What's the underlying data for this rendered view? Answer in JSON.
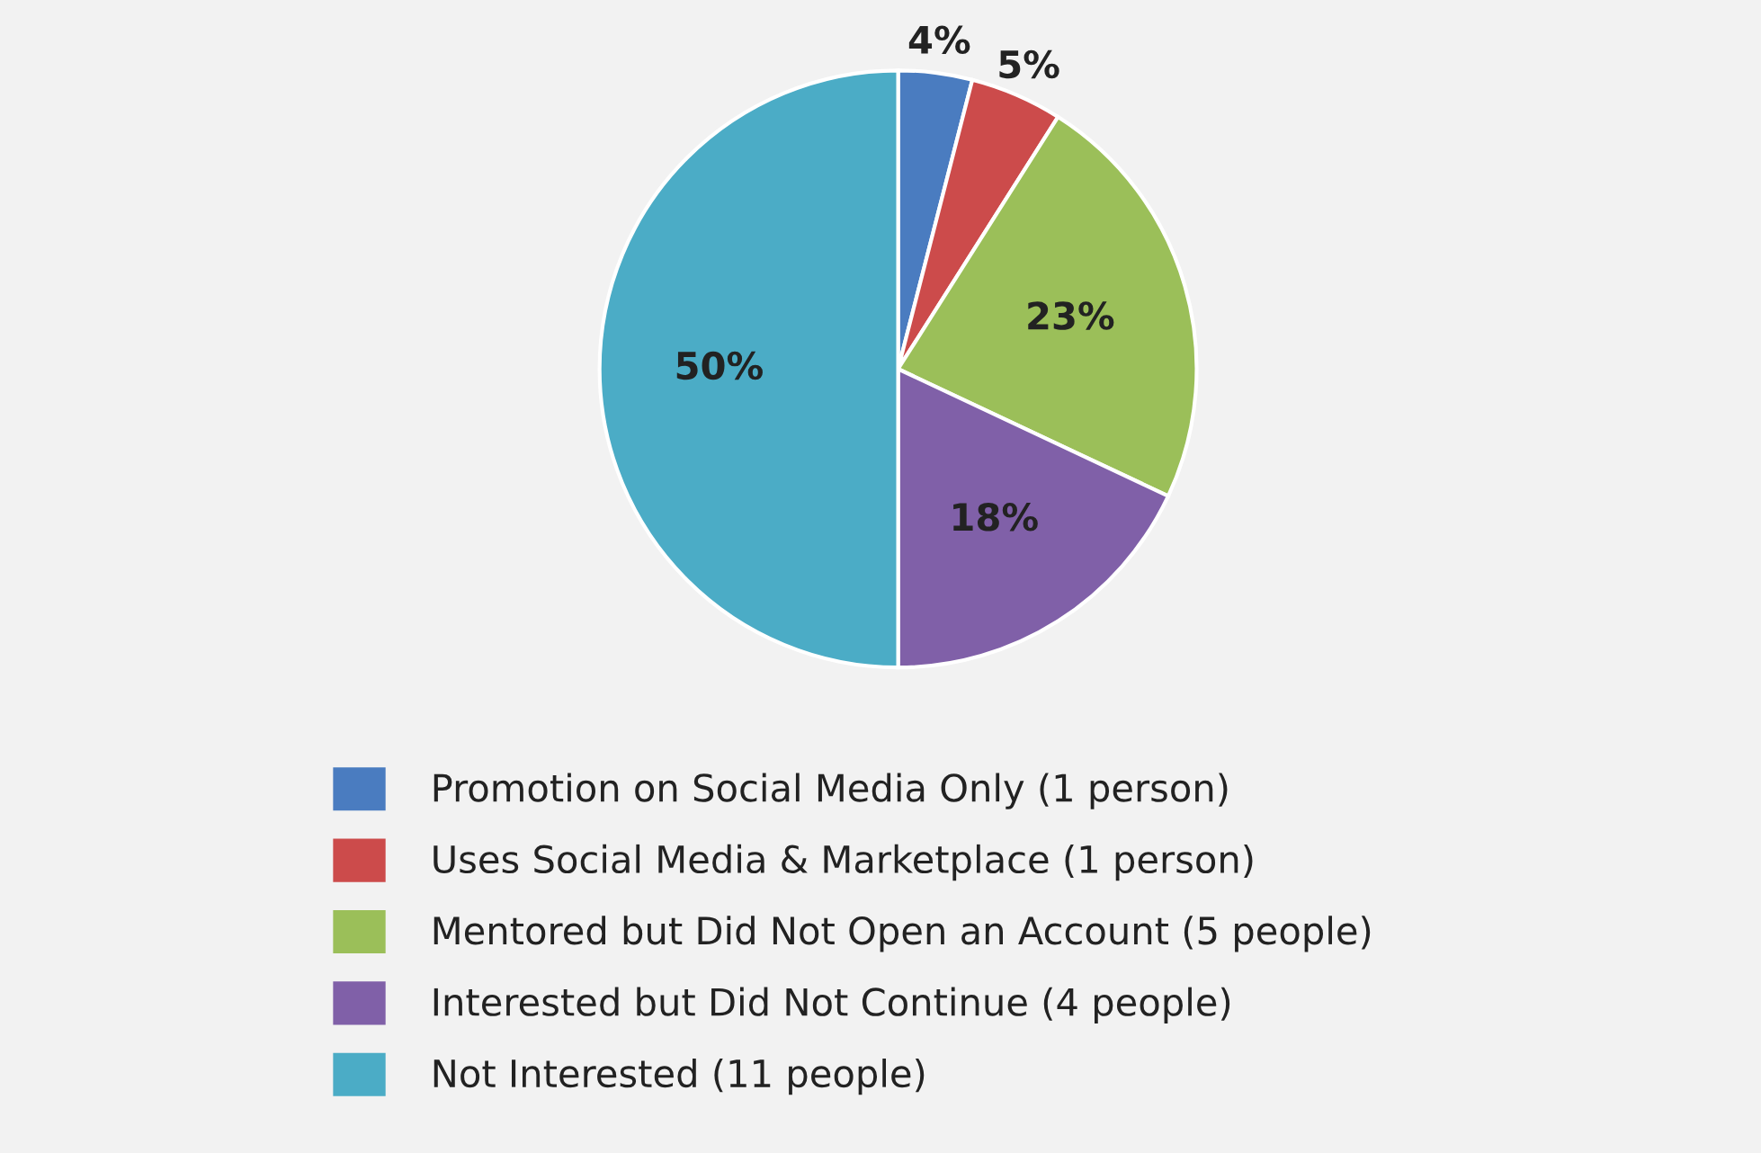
{
  "chart_data": {
    "type": "pie",
    "categories": [
      "Promotion on Social Media Only (1 person)",
      "Uses Social Media & Marketplace (1 person)",
      "Mentored but Did Not Open an Account (5 people)",
      "Interested but Did Not Continue (4 people)",
      "Not Interested (11 people)"
    ],
    "values": [
      4,
      5,
      23,
      18,
      50
    ],
    "colors": [
      "#4a7cc0",
      "#cc4b4b",
      "#9bbf59",
      "#8060a8",
      "#4bacc6"
    ],
    "value_labels": [
      "4%",
      "5%",
      "23%",
      "18%",
      "50%"
    ],
    "legend": "bottom"
  }
}
